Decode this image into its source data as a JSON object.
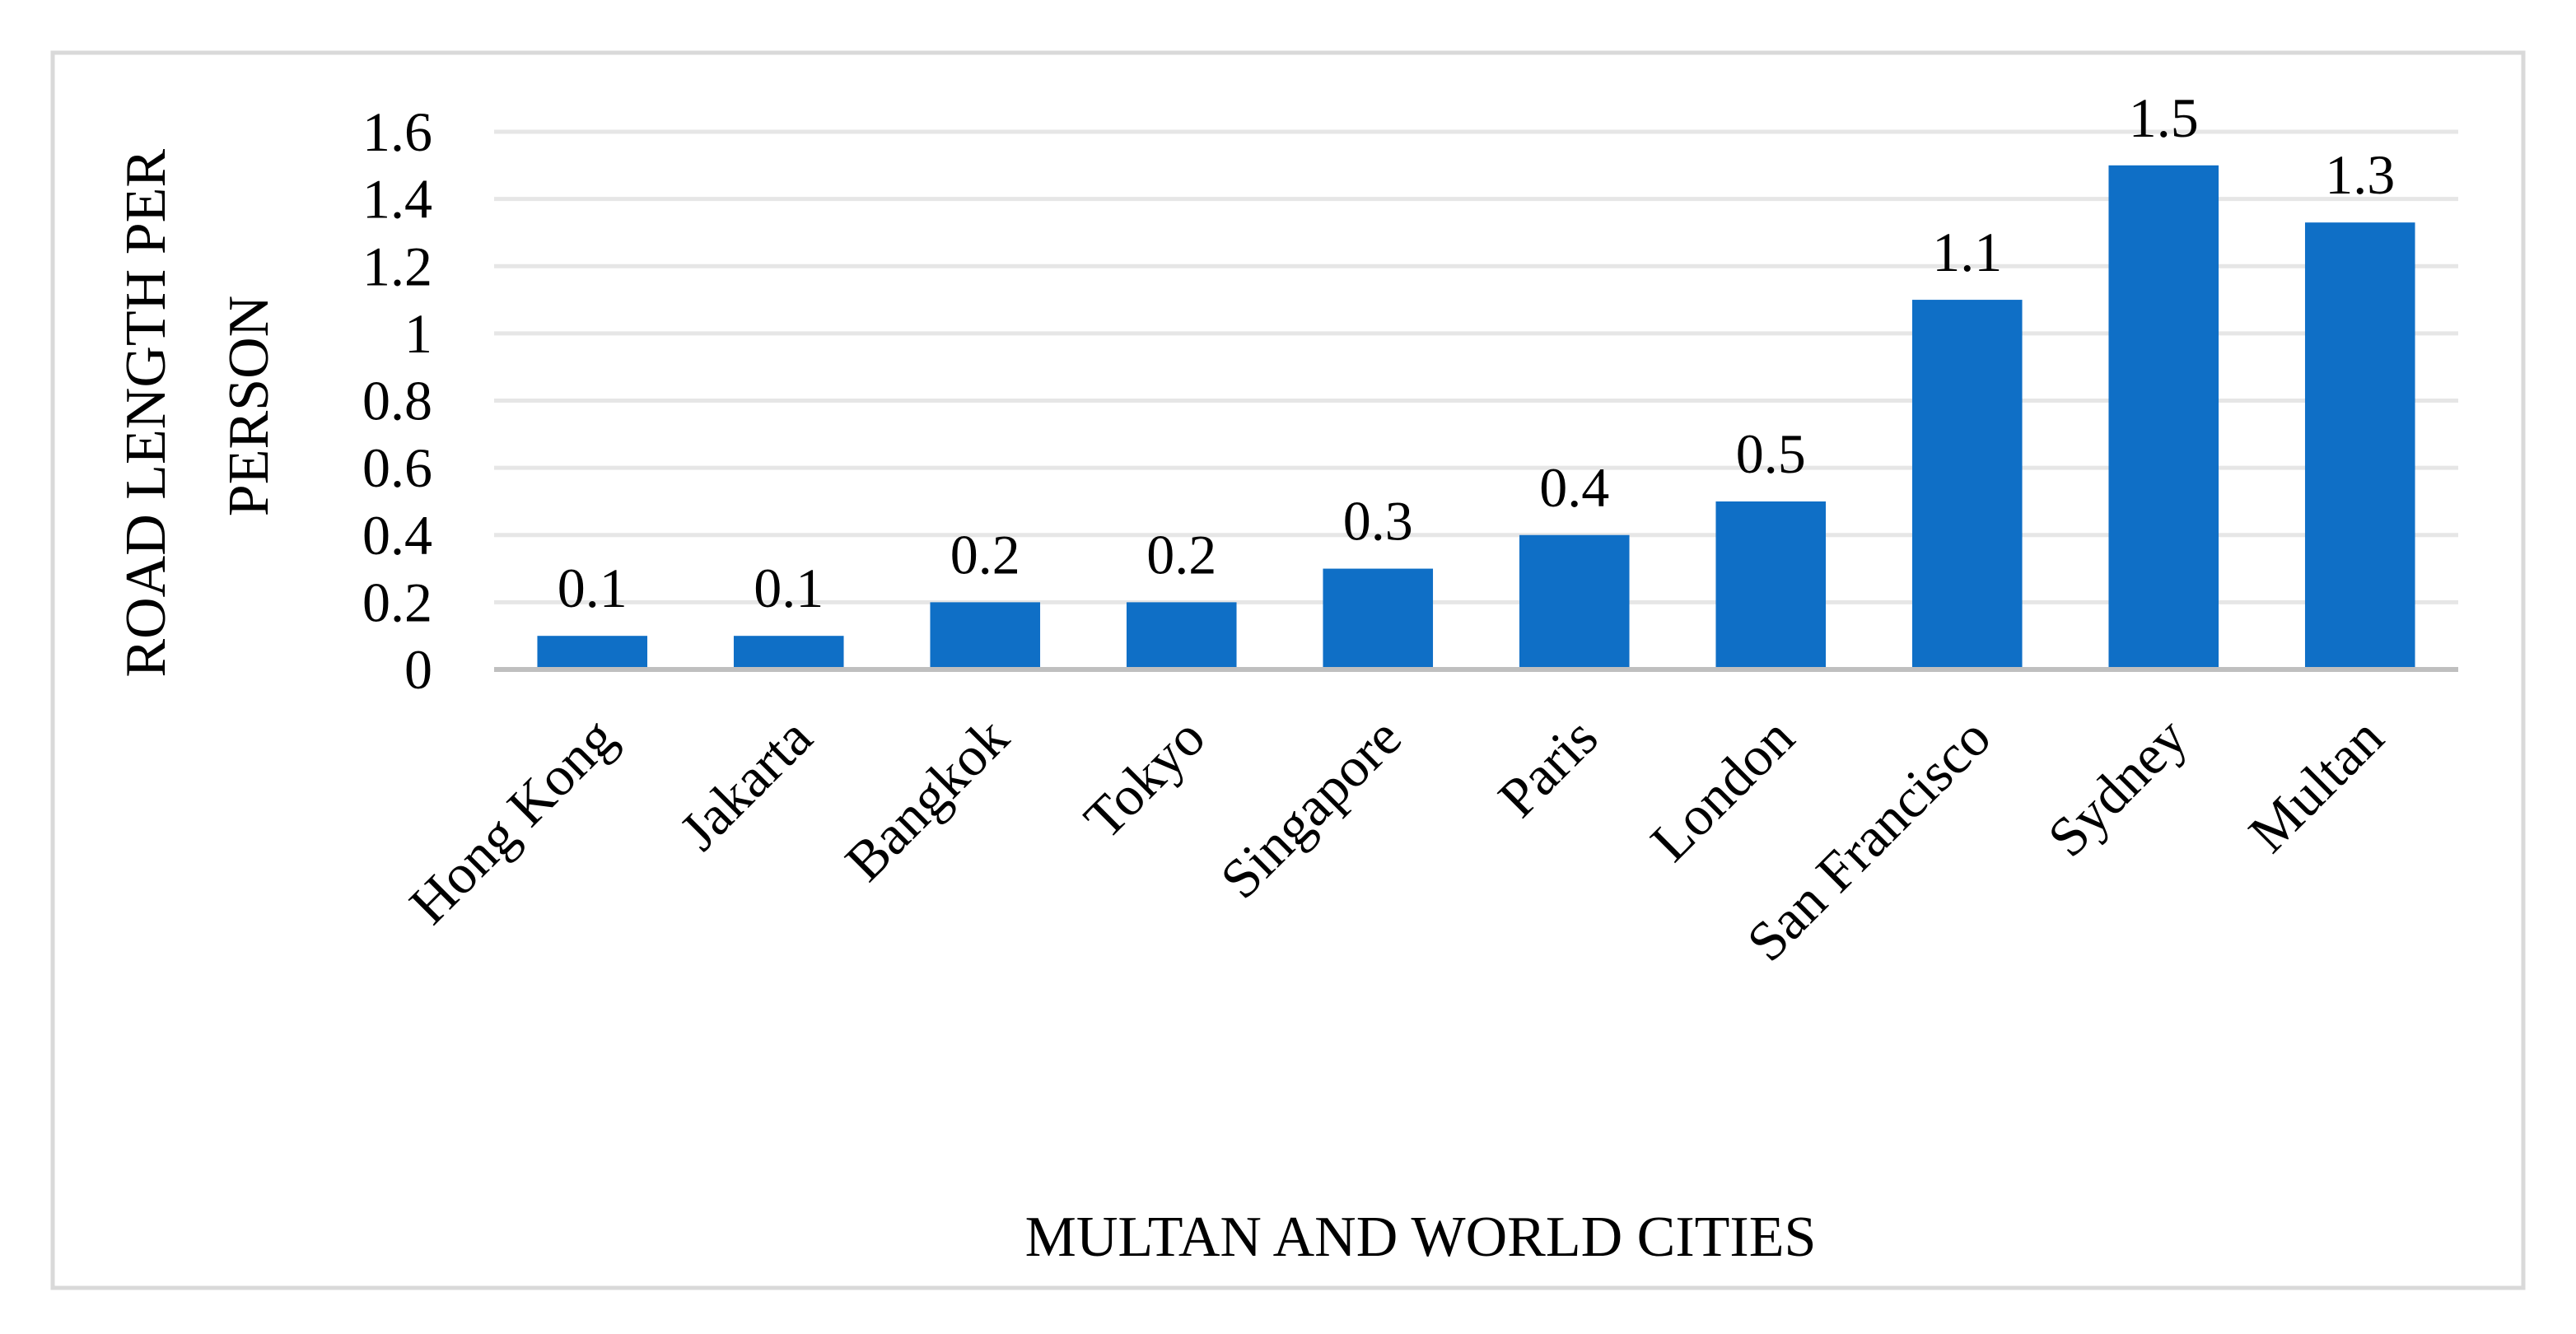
{
  "chart_data": {
    "type": "bar",
    "title": "",
    "xlabel": "MULTAN AND WORLD CITIES",
    "ylabel_lines": [
      "ROAD LENGTH PER",
      "PERSON"
    ],
    "categories": [
      "Hong Kong",
      "Jakarta",
      "Bangkok",
      "Tokyo",
      "Singapore",
      "Paris",
      "London",
      "San Francisco",
      "Sydney",
      "Multan"
    ],
    "values": [
      0.1,
      0.1,
      0.2,
      0.2,
      0.3,
      0.4,
      0.5,
      1.1,
      1.5,
      1.33
    ],
    "data_labels": [
      "0.1",
      "0.1",
      "0.2",
      "0.2",
      "0.3",
      "0.4",
      "0.5",
      "1.1",
      "1.5",
      "1.3"
    ],
    "y_ticks": [
      0,
      0.2,
      0.4,
      0.6,
      0.8,
      1,
      1.2,
      1.4,
      1.6
    ],
    "y_tick_labels": [
      "0",
      "0.2",
      "0.4",
      "0.6",
      "0.8",
      "1",
      "1.2",
      "1.4",
      "1.6"
    ],
    "ylim": [
      0,
      1.6
    ],
    "grid": true,
    "legend": "none",
    "colors": {
      "bar": "#0F6FC6",
      "grid": "#E6E6E6",
      "axis": "#BFBFBF",
      "border": "#D9D9D9"
    }
  }
}
